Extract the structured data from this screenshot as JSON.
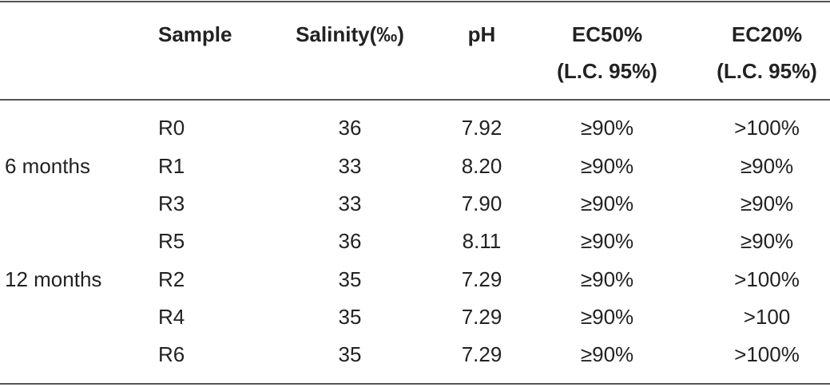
{
  "table": {
    "headers": {
      "sample": "Sample",
      "salinity": "Salinity(‰)",
      "ph": "pH",
      "ec50_line1": "EC50%",
      "ec50_line2": "(L.C. 95%)",
      "ec20_line1": "EC20%",
      "ec20_line2": "(L.C. 95%)"
    },
    "groups": [
      "6 months",
      "12 months"
    ],
    "rows": [
      {
        "sample": "R0",
        "salinity": "36",
        "ph": "7.92",
        "ec50": "≥90%",
        "ec20": ">100%"
      },
      {
        "sample": "R1",
        "salinity": "33",
        "ph": "8.20",
        "ec50": "≥90%",
        "ec20": "≥90%"
      },
      {
        "sample": "R3",
        "salinity": "33",
        "ph": "7.90",
        "ec50": "≥90%",
        "ec20": "≥90%"
      },
      {
        "sample": "R5",
        "salinity": "36",
        "ph": "8.11",
        "ec50": "≥90%",
        "ec20": "≥90%"
      },
      {
        "sample": "R2",
        "salinity": "35",
        "ph": "7.29",
        "ec50": "≥90%",
        "ec20": ">100%"
      },
      {
        "sample": "R4",
        "salinity": "35",
        "ph": "7.29",
        "ec50": "≥90%",
        "ec20": ">100"
      },
      {
        "sample": "R6",
        "salinity": "35",
        "ph": "7.29",
        "ec50": "≥90%",
        "ec20": ">100%"
      }
    ]
  }
}
